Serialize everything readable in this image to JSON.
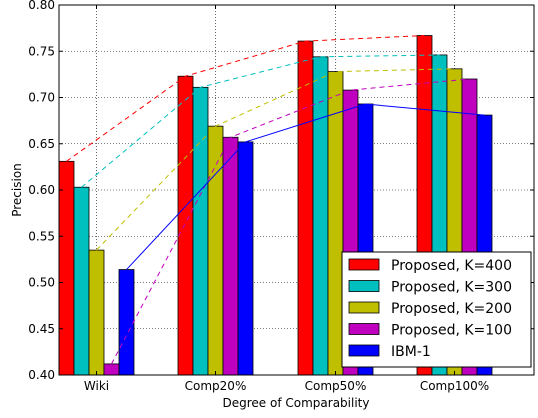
{
  "chart_data": {
    "type": "bar",
    "title": "",
    "xlabel": "Degree of Comparability",
    "ylabel": "Precision",
    "ylim": [
      0.4,
      0.8
    ],
    "yticks": [
      "0.40",
      "0.45",
      "0.50",
      "0.55",
      "0.60",
      "0.65",
      "0.70",
      "0.75",
      "0.80"
    ],
    "grid": true,
    "legend_position": "lower-right",
    "categories": [
      "Wiki",
      "Comp20%",
      "Comp50%",
      "Comp100%"
    ],
    "series": [
      {
        "name": "Proposed, K=400",
        "color": "#ff0000",
        "values": [
          0.631,
          0.723,
          0.761,
          0.767
        ],
        "trend": [
          0.631,
          0.723,
          0.761,
          0.767
        ]
      },
      {
        "name": "Proposed, K=300",
        "color": "#00bfbf",
        "values": [
          0.603,
          0.711,
          0.744,
          0.746
        ],
        "trend": [
          0.603,
          0.711,
          0.744,
          0.746
        ]
      },
      {
        "name": "Proposed, K=200",
        "color": "#bfbf00",
        "values": [
          0.535,
          0.669,
          0.728,
          0.731
        ],
        "trend": [
          0.535,
          0.669,
          0.728,
          0.731
        ]
      },
      {
        "name": "Proposed, K=100",
        "color": "#bf00bf",
        "values": [
          0.412,
          0.657,
          0.708,
          0.72
        ],
        "trend": [
          0.412,
          0.657,
          0.708,
          0.72
        ]
      },
      {
        "name": "IBM-1",
        "color": "#0000ff",
        "values": [
          0.514,
          0.652,
          0.693,
          0.681
        ],
        "trend": [
          0.514,
          0.652,
          0.693,
          0.681
        ]
      }
    ]
  }
}
